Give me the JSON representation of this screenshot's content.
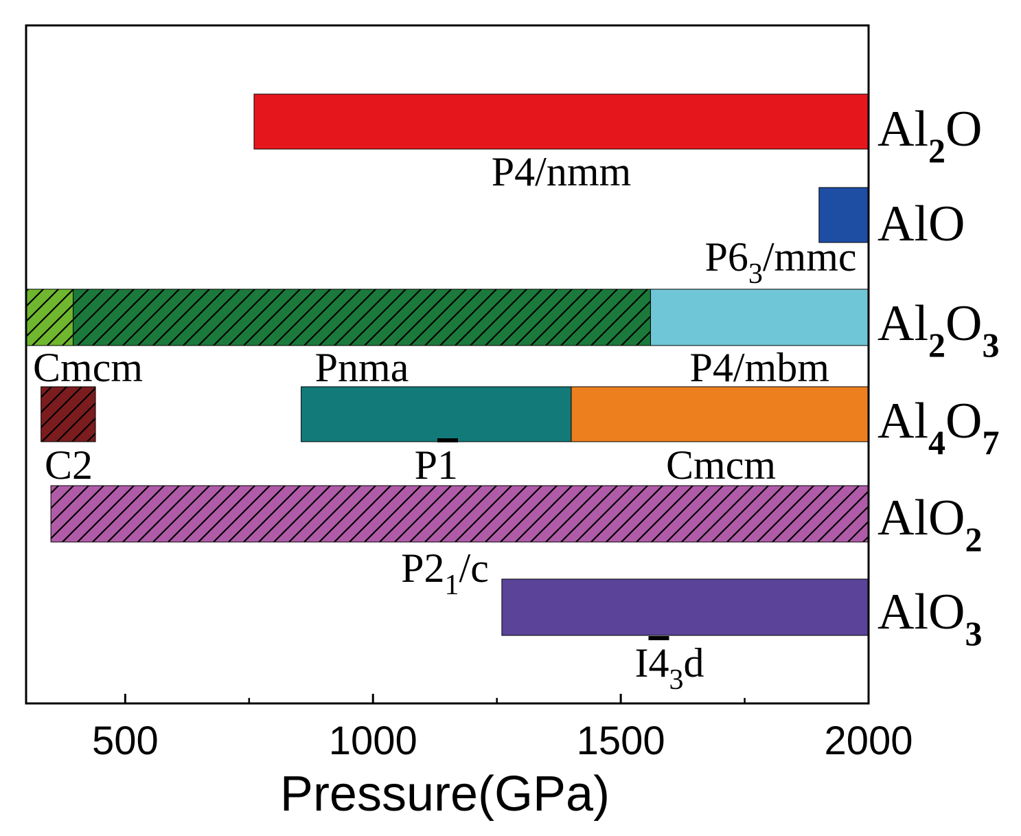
{
  "chart_data": {
    "type": "bar",
    "orientation": "horizontal",
    "xlabel": "Pressure(GPa)",
    "xlim": [
      300,
      2000
    ],
    "xticks": [
      500,
      1000,
      1500,
      2000
    ],
    "x_minor_ticks": [
      750,
      1250,
      1750
    ],
    "grid": false,
    "legend": "none",
    "compounds": [
      {
        "base": "Al",
        "sub1": "2",
        "mid": "O",
        "sub2": ""
      },
      {
        "base": "AlO",
        "sub1": "",
        "mid": "",
        "sub2": ""
      },
      {
        "base": "Al",
        "sub1": "2",
        "mid": "O",
        "sub2": "3"
      },
      {
        "base": "Al",
        "sub1": "4",
        "mid": "O",
        "sub2": "7"
      },
      {
        "base": "AlO",
        "sub1": "2",
        "mid": "",
        "sub2": ""
      },
      {
        "base": "AlO",
        "sub1": "3",
        "mid": "",
        "sub2": ""
      }
    ],
    "phases": [
      {
        "row": 0,
        "start": 760,
        "end": 2000,
        "color": "#e6171c",
        "hatch": false,
        "label": "P4/nmm"
      },
      {
        "row": 1,
        "start": 1900,
        "end": 2000,
        "color": "#1e4ea4",
        "hatch": false,
        "label": "P6",
        "label_sub": "3",
        "label_rest": "/mmc"
      },
      {
        "row": 2,
        "start": 300,
        "end": 395,
        "color": "#6fb72e",
        "hatch": true,
        "label": "Cmcm"
      },
      {
        "row": 2,
        "start": 395,
        "end": 1560,
        "color": "#1b7a3b",
        "hatch": true,
        "label": "Pnma"
      },
      {
        "row": 2,
        "start": 1560,
        "end": 2000,
        "color": "#6fc6d6",
        "hatch": false,
        "label": "P4/mbm"
      },
      {
        "row": 3,
        "start": 330,
        "end": 440,
        "color": "#7b1c1f",
        "hatch": true,
        "label": "C2"
      },
      {
        "row": 3,
        "start": 855,
        "end": 1400,
        "color": "#137a7a",
        "hatch": false,
        "label": "P",
        "label_overbar": "1"
      },
      {
        "row": 3,
        "start": 1400,
        "end": 2000,
        "color": "#ee7f1e",
        "hatch": false,
        "label": "Cmcm"
      },
      {
        "row": 4,
        "start": 350,
        "end": 2000,
        "color": "#b05ba8",
        "hatch": true,
        "label": "P2",
        "label_sub": "1",
        "label_rest": "/c"
      },
      {
        "row": 5,
        "start": 1260,
        "end": 2000,
        "color": "#5a4399",
        "hatch": false,
        "label": "I",
        "label_overbar": "4",
        "label_sub": "3",
        "label_rest": "d"
      }
    ]
  }
}
